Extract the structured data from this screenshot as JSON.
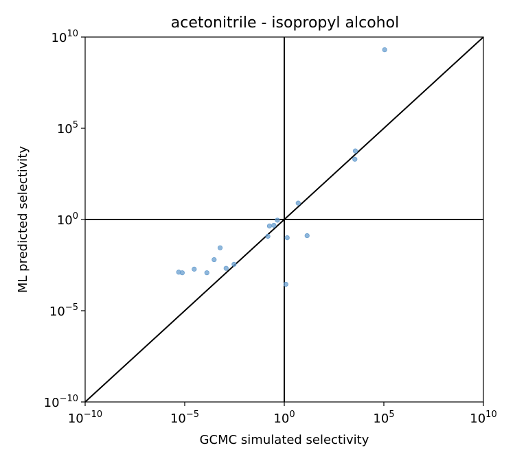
{
  "chart_data": {
    "type": "scatter",
    "title": "acetonitrile - isopropyl alcohol",
    "xlabel": "GCMC simulated selectivity",
    "ylabel": "ML predicted selectivity",
    "xscale": "log",
    "yscale": "log",
    "xlim": [
      1e-10,
      10000000000.0
    ],
    "ylim": [
      1e-10,
      10000000000.0
    ],
    "x_ticks": [
      {
        "value": 1e-10,
        "base": "10",
        "exp": "−10"
      },
      {
        "value": 1e-05,
        "base": "10",
        "exp": "−5"
      },
      {
        "value": 1,
        "base": "10",
        "exp": "0"
      },
      {
        "value": 100000.0,
        "base": "10",
        "exp": "5"
      },
      {
        "value": 10000000000.0,
        "base": "10",
        "exp": "10"
      }
    ],
    "y_ticks": [
      {
        "value": 1e-10,
        "base": "10",
        "exp": "−10"
      },
      {
        "value": 1e-05,
        "base": "10",
        "exp": "−5"
      },
      {
        "value": 1,
        "base": "10",
        "exp": "0"
      },
      {
        "value": 100000.0,
        "base": "10",
        "exp": "5"
      },
      {
        "value": 10000000000.0,
        "base": "10",
        "exp": "10"
      }
    ],
    "grid": false,
    "reference_lines": [
      "y = x",
      "x = 1",
      "y = 1"
    ],
    "point_color": "#6a9fcf",
    "line_color": "#000000",
    "points": [
      {
        "x": 5e-06,
        "y": 0.0013
      },
      {
        "x": 7.5e-06,
        "y": 0.0012
      },
      {
        "x": 3e-05,
        "y": 0.0019
      },
      {
        "x": 0.00013,
        "y": 0.0012
      },
      {
        "x": 0.0003,
        "y": 0.0063
      },
      {
        "x": 0.0006,
        "y": 0.028
      },
      {
        "x": 0.0012,
        "y": 0.0021
      },
      {
        "x": 0.003,
        "y": 0.0035
      },
      {
        "x": 0.15,
        "y": 0.12
      },
      {
        "x": 0.18,
        "y": 0.44
      },
      {
        "x": 0.3,
        "y": 0.48
      },
      {
        "x": 0.45,
        "y": 0.92
      },
      {
        "x": 1.2,
        "y": 0.000282
      },
      {
        "x": 1.4,
        "y": 0.1
      },
      {
        "x": 5,
        "y": 7.9
      },
      {
        "x": 14,
        "y": 0.13
      },
      {
        "x": 3500,
        "y": 2000
      },
      {
        "x": 3700,
        "y": 5700
      },
      {
        "x": 110000,
        "y": 2000000000
      }
    ]
  }
}
